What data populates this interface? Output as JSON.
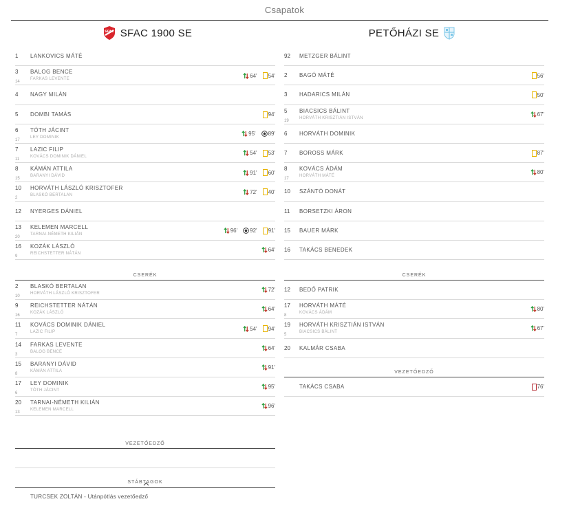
{
  "title": "Csapatok",
  "colors": {
    "yellow": "#e8b400",
    "red": "#b3262e",
    "sub_in": "#2e9e3e",
    "sub_out": "#c0392b"
  },
  "home": {
    "name": "SFAC 1900 SE",
    "logo_text": "SFAC",
    "starters": [
      {
        "num": "1",
        "name": "LANKOVICS MÁTÉ",
        "events": []
      },
      {
        "num": "3",
        "name": "BALOG BENCE",
        "sub_num": "14",
        "sub_name": "FARKAS LEVENTE",
        "events": [
          {
            "type": "sub",
            "min": "64'"
          },
          {
            "type": "yellow",
            "min": "54'"
          }
        ]
      },
      {
        "num": "4",
        "name": "NAGY MILÁN",
        "events": []
      },
      {
        "num": "5",
        "name": "DOMBI TAMÁS",
        "events": [
          {
            "type": "yellow",
            "min": "94'"
          }
        ]
      },
      {
        "num": "6",
        "name": "TÓTH JÁCINT",
        "sub_num": "17",
        "sub_name": "LEY DOMINIK",
        "events": [
          {
            "type": "sub",
            "min": "95'"
          },
          {
            "type": "goal",
            "min": "89'"
          }
        ]
      },
      {
        "num": "7",
        "name": "LAZIC FILIP",
        "sub_num": "11",
        "sub_name": "KOVÁCS DOMINIK DÁNIEL",
        "events": [
          {
            "type": "sub",
            "min": "54'"
          },
          {
            "type": "yellow",
            "min": "53'"
          }
        ]
      },
      {
        "num": "8",
        "name": "KÁMÁN ATTILA",
        "sub_num": "15",
        "sub_name": "BARANYI DÁVID",
        "events": [
          {
            "type": "sub",
            "min": "91'"
          },
          {
            "type": "yellow",
            "min": "60'"
          }
        ]
      },
      {
        "num": "10",
        "name": "HORVÁTH LÁSZLÓ KRISZTOFER",
        "sub_num": "2",
        "sub_name": "BLASKÓ BERTALAN",
        "events": [
          {
            "type": "sub",
            "min": "72'"
          },
          {
            "type": "yellow",
            "min": "40'"
          }
        ]
      },
      {
        "num": "12",
        "name": "NYERGES DÁNIEL",
        "events": []
      },
      {
        "num": "13",
        "name": "KELEMEN MARCELL",
        "sub_num": "20",
        "sub_name": "TARNAI-NÉMETH KILIÁN",
        "events": [
          {
            "type": "sub",
            "min": "96'"
          },
          {
            "type": "goal",
            "min": "92'"
          },
          {
            "type": "yellow",
            "min": "91'"
          }
        ]
      },
      {
        "num": "16",
        "name": "KOZÁK LÁSZLÓ",
        "sub_num": "9",
        "sub_name": "REICHSTETTER NÁTÁN",
        "events": [
          {
            "type": "sub",
            "min": "64'"
          }
        ]
      }
    ],
    "subs_label": "CSERÉK",
    "subs": [
      {
        "num": "2",
        "name": "BLASKÓ BERTALAN",
        "sub_num": "10",
        "sub_name": "HORVÁTH LÁSZLÓ KRISZTOFER",
        "events": [
          {
            "type": "sub",
            "min": "72'"
          }
        ]
      },
      {
        "num": "9",
        "name": "REICHSTETTER NÁTÁN",
        "sub_num": "16",
        "sub_name": "KOZÁK LÁSZLÓ",
        "events": [
          {
            "type": "sub",
            "min": "64'"
          }
        ]
      },
      {
        "num": "11",
        "name": "KOVÁCS DOMINIK DÁNIEL",
        "sub_num": "7",
        "sub_name": "LAZIC FILIP",
        "events": [
          {
            "type": "sub",
            "min": "54'"
          },
          {
            "type": "yellow",
            "min": "94'"
          }
        ]
      },
      {
        "num": "14",
        "name": "FARKAS LEVENTE",
        "sub_num": "3",
        "sub_name": "BALOG BENCE",
        "events": [
          {
            "type": "sub",
            "min": "64'"
          }
        ]
      },
      {
        "num": "15",
        "name": "BARANYI DÁVID",
        "sub_num": "8",
        "sub_name": "KÁMÁN ATTILA",
        "events": [
          {
            "type": "sub",
            "min": "91'"
          }
        ]
      },
      {
        "num": "17",
        "name": "LEY DOMINIK",
        "sub_num": "6",
        "sub_name": "TÓTH JÁCINT",
        "events": [
          {
            "type": "sub",
            "min": "95'"
          }
        ]
      },
      {
        "num": "20",
        "name": "TARNAI-NÉMETH KILIÁN",
        "sub_num": "13",
        "sub_name": "KELEMEN MARCELL",
        "events": [
          {
            "type": "sub",
            "min": "96'"
          }
        ]
      }
    ],
    "coach_label": "VEZETŐEDZŐ",
    "staff_label": "STÁBTAGOK",
    "staff": [
      "TURCSEK ZOLTÁN - Utánpótlás vezetőedző"
    ]
  },
  "away": {
    "name": "PETŐHÁZI SE",
    "starters": [
      {
        "num": "92",
        "name": "METZGER BÁLINT",
        "events": []
      },
      {
        "num": "2",
        "name": "BAGÓ MÁTÉ",
        "events": [
          {
            "type": "yellow",
            "min": "56'"
          }
        ]
      },
      {
        "num": "3",
        "name": "HADARICS MILÁN",
        "events": [
          {
            "type": "yellow",
            "min": "50'"
          }
        ]
      },
      {
        "num": "5",
        "name": "BIACSICS BÁLINT",
        "sub_num": "19",
        "sub_name": "HORVÁTH KRISZTIÁN ISTVÁN",
        "events": [
          {
            "type": "sub",
            "min": "67'"
          }
        ]
      },
      {
        "num": "6",
        "name": "HORVÁTH DOMINIK",
        "events": []
      },
      {
        "num": "7",
        "name": "BOROSS MÁRK",
        "events": [
          {
            "type": "yellow",
            "min": "87'"
          }
        ]
      },
      {
        "num": "8",
        "name": "KOVÁCS ÁDÁM",
        "sub_num": "17",
        "sub_name": "HORVÁTH MÁTÉ",
        "events": [
          {
            "type": "sub",
            "min": "80'"
          }
        ]
      },
      {
        "num": "10",
        "name": "SZÁNTÓ DONÁT",
        "events": []
      },
      {
        "num": "11",
        "name": "BORSETZKI ÁRON",
        "events": []
      },
      {
        "num": "15",
        "name": "BAUER MÁRK",
        "events": []
      },
      {
        "num": "16",
        "name": "TAKÁCS BENEDEK",
        "events": []
      }
    ],
    "subs_label": "CSERÉK",
    "subs": [
      {
        "num": "12",
        "name": "BEDŐ PATRIK",
        "events": []
      },
      {
        "num": "17",
        "name": "HORVÁTH MÁTÉ",
        "sub_num": "8",
        "sub_name": "KOVÁCS ÁDÁM",
        "events": [
          {
            "type": "sub",
            "min": "80'"
          }
        ]
      },
      {
        "num": "19",
        "name": "HORVÁTH KRISZTIÁN ISTVÁN",
        "sub_num": "5",
        "sub_name": "BIACSICS BÁLINT",
        "events": [
          {
            "type": "sub",
            "min": "67'"
          }
        ]
      },
      {
        "num": "20",
        "name": "KALMÁR CSABA",
        "events": []
      }
    ],
    "coach_label": "VEZETŐEDZŐ",
    "coach": {
      "name": "TAKÁCS CSABA",
      "events": [
        {
          "type": "red",
          "min": "76'"
        }
      ]
    }
  }
}
